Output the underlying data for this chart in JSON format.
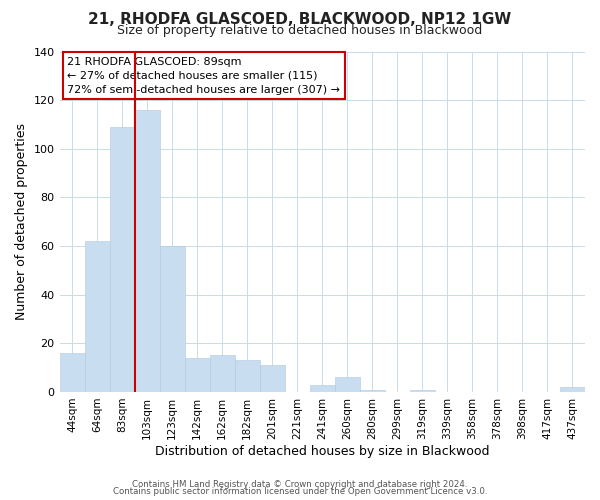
{
  "title": "21, RHODFA GLASCOED, BLACKWOOD, NP12 1GW",
  "subtitle": "Size of property relative to detached houses in Blackwood",
  "xlabel": "Distribution of detached houses by size in Blackwood",
  "ylabel": "Number of detached properties",
  "bar_labels": [
    "44sqm",
    "64sqm",
    "83sqm",
    "103sqm",
    "123sqm",
    "142sqm",
    "162sqm",
    "182sqm",
    "201sqm",
    "221sqm",
    "241sqm",
    "260sqm",
    "280sqm",
    "299sqm",
    "319sqm",
    "339sqm",
    "358sqm",
    "378sqm",
    "398sqm",
    "417sqm",
    "437sqm"
  ],
  "bar_values": [
    16,
    62,
    109,
    116,
    60,
    14,
    15,
    13,
    11,
    0,
    3,
    6,
    1,
    0,
    1,
    0,
    0,
    0,
    0,
    0,
    2
  ],
  "bar_color": "#c8ddf0",
  "bar_edge_color": "#b0c8e0",
  "vline_color": "#cc0000",
  "vline_x_index": 2.5,
  "ylim": [
    0,
    140
  ],
  "yticks": [
    0,
    20,
    40,
    60,
    80,
    100,
    120,
    140
  ],
  "annotation_title": "21 RHODFA GLASCOED: 89sqm",
  "annotation_line1": "← 27% of detached houses are smaller (115)",
  "annotation_line2": "72% of semi-detached houses are larger (307) →",
  "annotation_box_color": "#ffffff",
  "annotation_box_edge": "#cc0000",
  "footer1": "Contains HM Land Registry data © Crown copyright and database right 2024.",
  "footer2": "Contains public sector information licensed under the Open Government Licence v3.0.",
  "background_color": "#ffffff",
  "grid_color": "#c8dce8"
}
